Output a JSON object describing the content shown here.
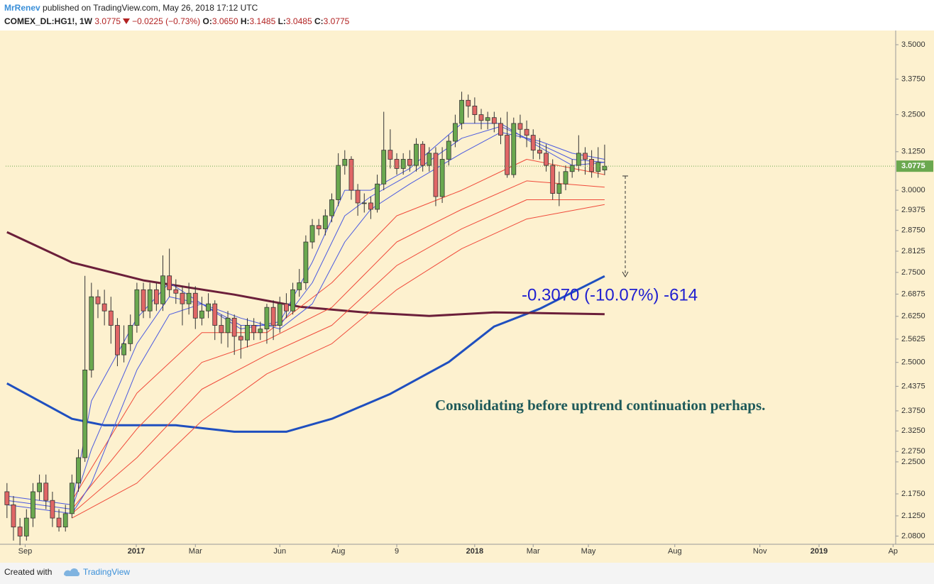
{
  "header": {
    "author": "MrRenev",
    "published": "published on TradingView.com, May 26, 2018 17:12 UTC",
    "quote": {
      "symbol": "COMEX_DL:HG1!, 1W",
      "last": "3.0775",
      "change": "−0.0225 (−0.73%)",
      "fields": [
        {
          "key": "O:",
          "value": "3.0650"
        },
        {
          "key": "H:",
          "value": "3.1485"
        },
        {
          "key": "L:",
          "value": "3.0485"
        },
        {
          "key": "C:",
          "value": "3.0775"
        }
      ]
    }
  },
  "footer": {
    "created": "Created with",
    "brand": "TradingView"
  },
  "chart_data": {
    "type": "candlestick",
    "log_scale": true,
    "grid": false,
    "up_color": "#6aa84f",
    "down_color": "#e06666",
    "xlim": [
      -0.2,
      136.8
    ],
    "ylim": [
      2.062,
      3.553
    ],
    "xticks": [
      {
        "value": 2.8,
        "label": "Sep"
      },
      {
        "value": 19.9,
        "label": "2017"
      },
      {
        "value": 29,
        "label": "Mar"
      },
      {
        "value": 42,
        "label": "Jun"
      },
      {
        "value": 51,
        "label": "Aug"
      },
      {
        "value": 60,
        "label": "9"
      },
      {
        "value": 72,
        "label": "2018"
      },
      {
        "value": 81,
        "label": "Mar"
      },
      {
        "value": 89.5,
        "label": "May"
      },
      {
        "value": 102.8,
        "label": "Aug"
      },
      {
        "value": 115.9,
        "label": "Nov"
      },
      {
        "value": 125,
        "label": "2019"
      },
      {
        "value": 136.4,
        "label": "Ap"
      }
    ],
    "yticks": [
      {
        "value": 3.5,
        "label": "3.5000"
      },
      {
        "value": 3.375,
        "label": "3.3750"
      },
      {
        "value": 3.25,
        "label": "3.2500"
      },
      {
        "value": 3.125,
        "label": "3.1250"
      },
      {
        "value": 3.0,
        "label": "3.0000"
      },
      {
        "value": 2.9375,
        "label": "2.9375"
      },
      {
        "value": 2.875,
        "label": "2.8750"
      },
      {
        "value": 2.8125,
        "label": "2.8125"
      },
      {
        "value": 2.75,
        "label": "2.7500"
      },
      {
        "value": 2.6875,
        "label": "2.6875"
      },
      {
        "value": 2.625,
        "label": "2.6250"
      },
      {
        "value": 2.5625,
        "label": "2.5625"
      },
      {
        "value": 2.5,
        "label": "2.5000"
      },
      {
        "value": 2.4375,
        "label": "2.4375"
      },
      {
        "value": 2.375,
        "label": "2.3750"
      },
      {
        "value": 2.325,
        "label": "2.3250"
      },
      {
        "value": 2.275,
        "label": "2.2750"
      },
      {
        "value": 2.25,
        "label": "2.2500"
      },
      {
        "value": 2.175,
        "label": "2.1750"
      },
      {
        "value": 2.125,
        "label": "2.1250"
      },
      {
        "value": 2.08,
        "label": "2.0800"
      }
    ],
    "price_line": {
      "value": 3.0775,
      "label": "3.0775",
      "color": "#6aa84f"
    },
    "candles": [
      [
        2.18,
        2.2,
        2.12,
        2.15
      ],
      [
        2.15,
        2.17,
        2.07,
        2.1
      ],
      [
        2.1,
        2.12,
        2.06,
        2.08
      ],
      [
        2.08,
        2.14,
        2.07,
        2.12
      ],
      [
        2.12,
        2.2,
        2.1,
        2.18
      ],
      [
        2.18,
        2.22,
        2.16,
        2.2
      ],
      [
        2.2,
        2.22,
        2.14,
        2.16
      ],
      [
        2.16,
        2.18,
        2.1,
        2.12
      ],
      [
        2.12,
        2.14,
        2.09,
        2.1
      ],
      [
        2.1,
        2.15,
        2.09,
        2.13
      ],
      [
        2.13,
        2.22,
        2.12,
        2.2
      ],
      [
        2.2,
        2.28,
        2.18,
        2.26
      ],
      [
        2.26,
        2.74,
        2.25,
        2.48
      ],
      [
        2.48,
        2.72,
        2.46,
        2.68
      ],
      [
        2.68,
        2.7,
        2.62,
        2.66
      ],
      [
        2.66,
        2.7,
        2.6,
        2.64
      ],
      [
        2.64,
        2.68,
        2.55,
        2.6
      ],
      [
        2.6,
        2.62,
        2.49,
        2.52
      ],
      [
        2.52,
        2.6,
        2.5,
        2.55
      ],
      [
        2.55,
        2.63,
        2.53,
        2.6
      ],
      [
        2.6,
        2.72,
        2.58,
        2.7
      ],
      [
        2.7,
        2.72,
        2.62,
        2.64
      ],
      [
        2.64,
        2.72,
        2.62,
        2.7
      ],
      [
        2.7,
        2.72,
        2.64,
        2.66
      ],
      [
        2.66,
        2.8,
        2.64,
        2.74
      ],
      [
        2.74,
        2.82,
        2.68,
        2.7
      ],
      [
        2.7,
        2.73,
        2.66,
        2.69
      ],
      [
        2.69,
        2.71,
        2.6,
        2.66
      ],
      [
        2.66,
        2.72,
        2.63,
        2.69
      ],
      [
        2.69,
        2.71,
        2.59,
        2.62
      ],
      [
        2.62,
        2.68,
        2.6,
        2.64
      ],
      [
        2.64,
        2.69,
        2.62,
        2.66
      ],
      [
        2.66,
        2.67,
        2.56,
        2.6
      ],
      [
        2.6,
        2.63,
        2.55,
        2.58
      ],
      [
        2.58,
        2.64,
        2.54,
        2.62
      ],
      [
        2.62,
        2.63,
        2.52,
        2.57
      ],
      [
        2.57,
        2.6,
        2.51,
        2.56
      ],
      [
        2.56,
        2.62,
        2.54,
        2.6
      ],
      [
        2.6,
        2.62,
        2.56,
        2.58
      ],
      [
        2.58,
        2.61,
        2.56,
        2.59
      ],
      [
        2.59,
        2.66,
        2.55,
        2.65
      ],
      [
        2.65,
        2.67,
        2.56,
        2.6
      ],
      [
        2.6,
        2.68,
        2.58,
        2.66
      ],
      [
        2.66,
        2.69,
        2.62,
        2.64
      ],
      [
        2.64,
        2.72,
        2.63,
        2.7
      ],
      [
        2.7,
        2.76,
        2.68,
        2.72
      ],
      [
        2.72,
        2.86,
        2.7,
        2.84
      ],
      [
        2.84,
        2.91,
        2.82,
        2.89
      ],
      [
        2.89,
        2.91,
        2.86,
        2.88
      ],
      [
        2.88,
        2.94,
        2.86,
        2.92
      ],
      [
        2.92,
        2.99,
        2.9,
        2.97
      ],
      [
        2.97,
        3.12,
        2.95,
        3.08
      ],
      [
        3.08,
        3.13,
        3.05,
        3.1
      ],
      [
        3.1,
        3.11,
        2.97,
        3.0
      ],
      [
        3.0,
        3.02,
        2.92,
        2.96
      ],
      [
        2.96,
        2.99,
        2.93,
        2.96
      ],
      [
        2.96,
        2.98,
        2.91,
        2.94
      ],
      [
        2.94,
        3.05,
        2.93,
        3.02
      ],
      [
        3.02,
        3.26,
        3.0,
        3.13
      ],
      [
        3.13,
        3.2,
        3.07,
        3.1
      ],
      [
        3.1,
        3.12,
        3.05,
        3.07
      ],
      [
        3.07,
        3.12,
        3.05,
        3.1
      ],
      [
        3.1,
        3.13,
        3.06,
        3.08
      ],
      [
        3.08,
        3.17,
        3.06,
        3.15
      ],
      [
        3.15,
        3.16,
        3.06,
        3.08
      ],
      [
        3.08,
        3.14,
        3.06,
        3.12
      ],
      [
        3.12,
        3.14,
        2.95,
        2.98
      ],
      [
        2.98,
        3.14,
        2.96,
        3.1
      ],
      [
        3.1,
        3.18,
        3.08,
        3.16
      ],
      [
        3.16,
        3.25,
        3.14,
        3.22
      ],
      [
        3.22,
        3.33,
        3.2,
        3.3
      ],
      [
        3.3,
        3.32,
        3.24,
        3.28
      ],
      [
        3.28,
        3.31,
        3.22,
        3.25
      ],
      [
        3.25,
        3.27,
        3.2,
        3.23
      ],
      [
        3.23,
        3.26,
        3.2,
        3.24
      ],
      [
        3.24,
        3.26,
        3.19,
        3.22
      ],
      [
        3.22,
        3.24,
        3.15,
        3.18
      ],
      [
        3.18,
        3.26,
        3.04,
        3.05
      ],
      [
        3.05,
        3.24,
        3.04,
        3.22
      ],
      [
        3.22,
        3.25,
        3.17,
        3.2
      ],
      [
        3.2,
        3.23,
        3.14,
        3.18
      ],
      [
        3.18,
        3.2,
        3.1,
        3.13
      ],
      [
        3.13,
        3.17,
        3.1,
        3.12
      ],
      [
        3.12,
        3.15,
        3.06,
        3.08
      ],
      [
        3.08,
        3.1,
        2.97,
        2.99
      ],
      [
        2.99,
        3.06,
        2.95,
        3.02
      ],
      [
        3.02,
        3.08,
        3.0,
        3.06
      ],
      [
        3.06,
        3.1,
        3.04,
        3.08
      ],
      [
        3.08,
        3.18,
        3.06,
        3.12
      ],
      [
        3.12,
        3.14,
        3.05,
        3.1
      ],
      [
        3.1,
        3.13,
        3.04,
        3.06
      ],
      [
        3.06,
        3.14,
        3.04,
        3.09
      ],
      [
        3.065,
        3.1485,
        3.0485,
        3.0775
      ]
    ],
    "series": [
      {
        "color": "#1f4fbf",
        "width": 3,
        "x": [
          0,
          10,
          15,
          26,
          35,
          43,
          50,
          59,
          68,
          75,
          82,
          92
        ],
        "values": [
          2.445,
          2.355,
          2.339,
          2.339,
          2.323,
          2.323,
          2.355,
          2.418,
          2.501,
          2.597,
          2.646,
          2.739
        ]
      },
      {
        "color": "#6b1f3a",
        "width": 3,
        "x": [
          0,
          10,
          21,
          35,
          45,
          55,
          65,
          75,
          92
        ],
        "values": [
          2.87,
          2.779,
          2.727,
          2.686,
          2.652,
          2.636,
          2.626,
          2.636,
          2.631
        ]
      },
      {
        "color": "#f04a3a",
        "width": 1,
        "x": [
          10,
          20,
          30,
          40,
          50,
          60,
          70,
          80,
          92
        ],
        "values": [
          2.16,
          2.42,
          2.58,
          2.58,
          2.72,
          2.92,
          3.0,
          3.1,
          3.05
        ]
      },
      {
        "color": "#f04a3a",
        "width": 1,
        "x": [
          10,
          20,
          30,
          40,
          50,
          60,
          70,
          80,
          92
        ],
        "values": [
          2.14,
          2.33,
          2.5,
          2.56,
          2.65,
          2.84,
          2.94,
          3.03,
          3.01
        ]
      },
      {
        "color": "#f04a3a",
        "width": 1,
        "x": [
          10,
          20,
          30,
          40,
          50,
          60,
          70,
          80,
          92
        ],
        "values": [
          2.13,
          2.26,
          2.43,
          2.52,
          2.6,
          2.77,
          2.88,
          2.97,
          2.97
        ]
      },
      {
        "color": "#f04a3a",
        "width": 1,
        "x": [
          10,
          20,
          30,
          40,
          50,
          60,
          70,
          80,
          92
        ],
        "values": [
          2.12,
          2.2,
          2.35,
          2.47,
          2.55,
          2.7,
          2.82,
          2.91,
          2.955
        ]
      },
      {
        "color": "#4a5ae0",
        "width": 1,
        "x": [
          0,
          10,
          13,
          20,
          25,
          30,
          36,
          42,
          47,
          52,
          56,
          62,
          70,
          76,
          82,
          87,
          92
        ],
        "values": [
          2.17,
          2.15,
          2.4,
          2.62,
          2.72,
          2.66,
          2.59,
          2.61,
          2.78,
          3.0,
          3.0,
          3.07,
          3.22,
          3.22,
          3.14,
          3.08,
          3.09
        ]
      },
      {
        "color": "#4a5ae0",
        "width": 1,
        "x": [
          0,
          10,
          13,
          20,
          25,
          30,
          36,
          42,
          47,
          52,
          56,
          62,
          70,
          76,
          82,
          87,
          92
        ],
        "values": [
          2.16,
          2.14,
          2.28,
          2.55,
          2.68,
          2.66,
          2.6,
          2.6,
          2.72,
          2.92,
          2.98,
          3.05,
          3.17,
          3.21,
          3.15,
          3.1,
          3.09
        ]
      },
      {
        "color": "#4a5ae0",
        "width": 1,
        "x": [
          0,
          10,
          13,
          20,
          25,
          30,
          36,
          42,
          47,
          52,
          56,
          62,
          70,
          76,
          82,
          87,
          92
        ],
        "values": [
          2.15,
          2.13,
          2.2,
          2.48,
          2.63,
          2.66,
          2.62,
          2.59,
          2.66,
          2.84,
          2.94,
          3.02,
          3.12,
          3.19,
          3.16,
          3.12,
          3.1
        ]
      }
    ],
    "annotations": [
      "-0.3070 (-10.07%) -614",
      "Consolidating before uptrend continuation perhaps."
    ]
  }
}
